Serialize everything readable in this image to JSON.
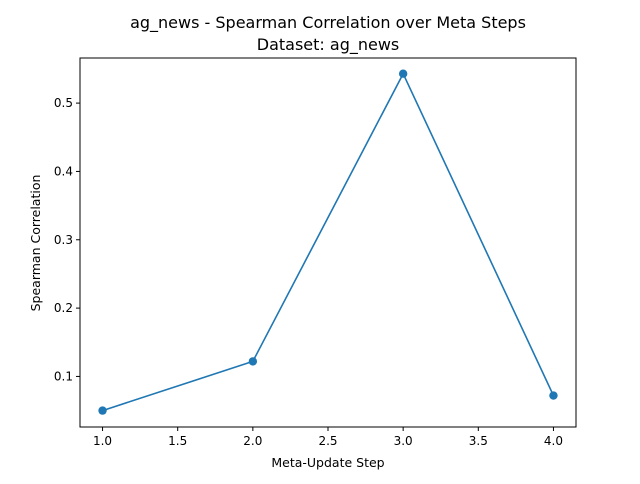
{
  "chart_data": {
    "type": "line",
    "title": "ag_news - Spearman Correlation over Meta Steps",
    "subtitle": "Dataset: ag_news",
    "xlabel": "Meta-Update Step",
    "ylabel": "Spearman Correlation",
    "xlim": [
      0.85,
      4.15
    ],
    "ylim": [
      0.026,
      0.566
    ],
    "xticks": [
      1.0,
      1.5,
      2.0,
      2.5,
      3.0,
      3.5,
      4.0
    ],
    "xtick_labels": [
      "1.0",
      "1.5",
      "2.0",
      "2.5",
      "3.0",
      "3.5",
      "4.0"
    ],
    "yticks": [
      0.1,
      0.2,
      0.3,
      0.4,
      0.5
    ],
    "ytick_labels": [
      "0.1",
      "0.2",
      "0.3",
      "0.4",
      "0.5"
    ],
    "grid": false,
    "legend": "none",
    "series": [
      {
        "color": "#1f77b4",
        "marker": "circle",
        "x": [
          1.0,
          2.0,
          3.0,
          4.0
        ],
        "y": [
          0.05,
          0.122,
          0.543,
          0.072
        ]
      }
    ]
  }
}
